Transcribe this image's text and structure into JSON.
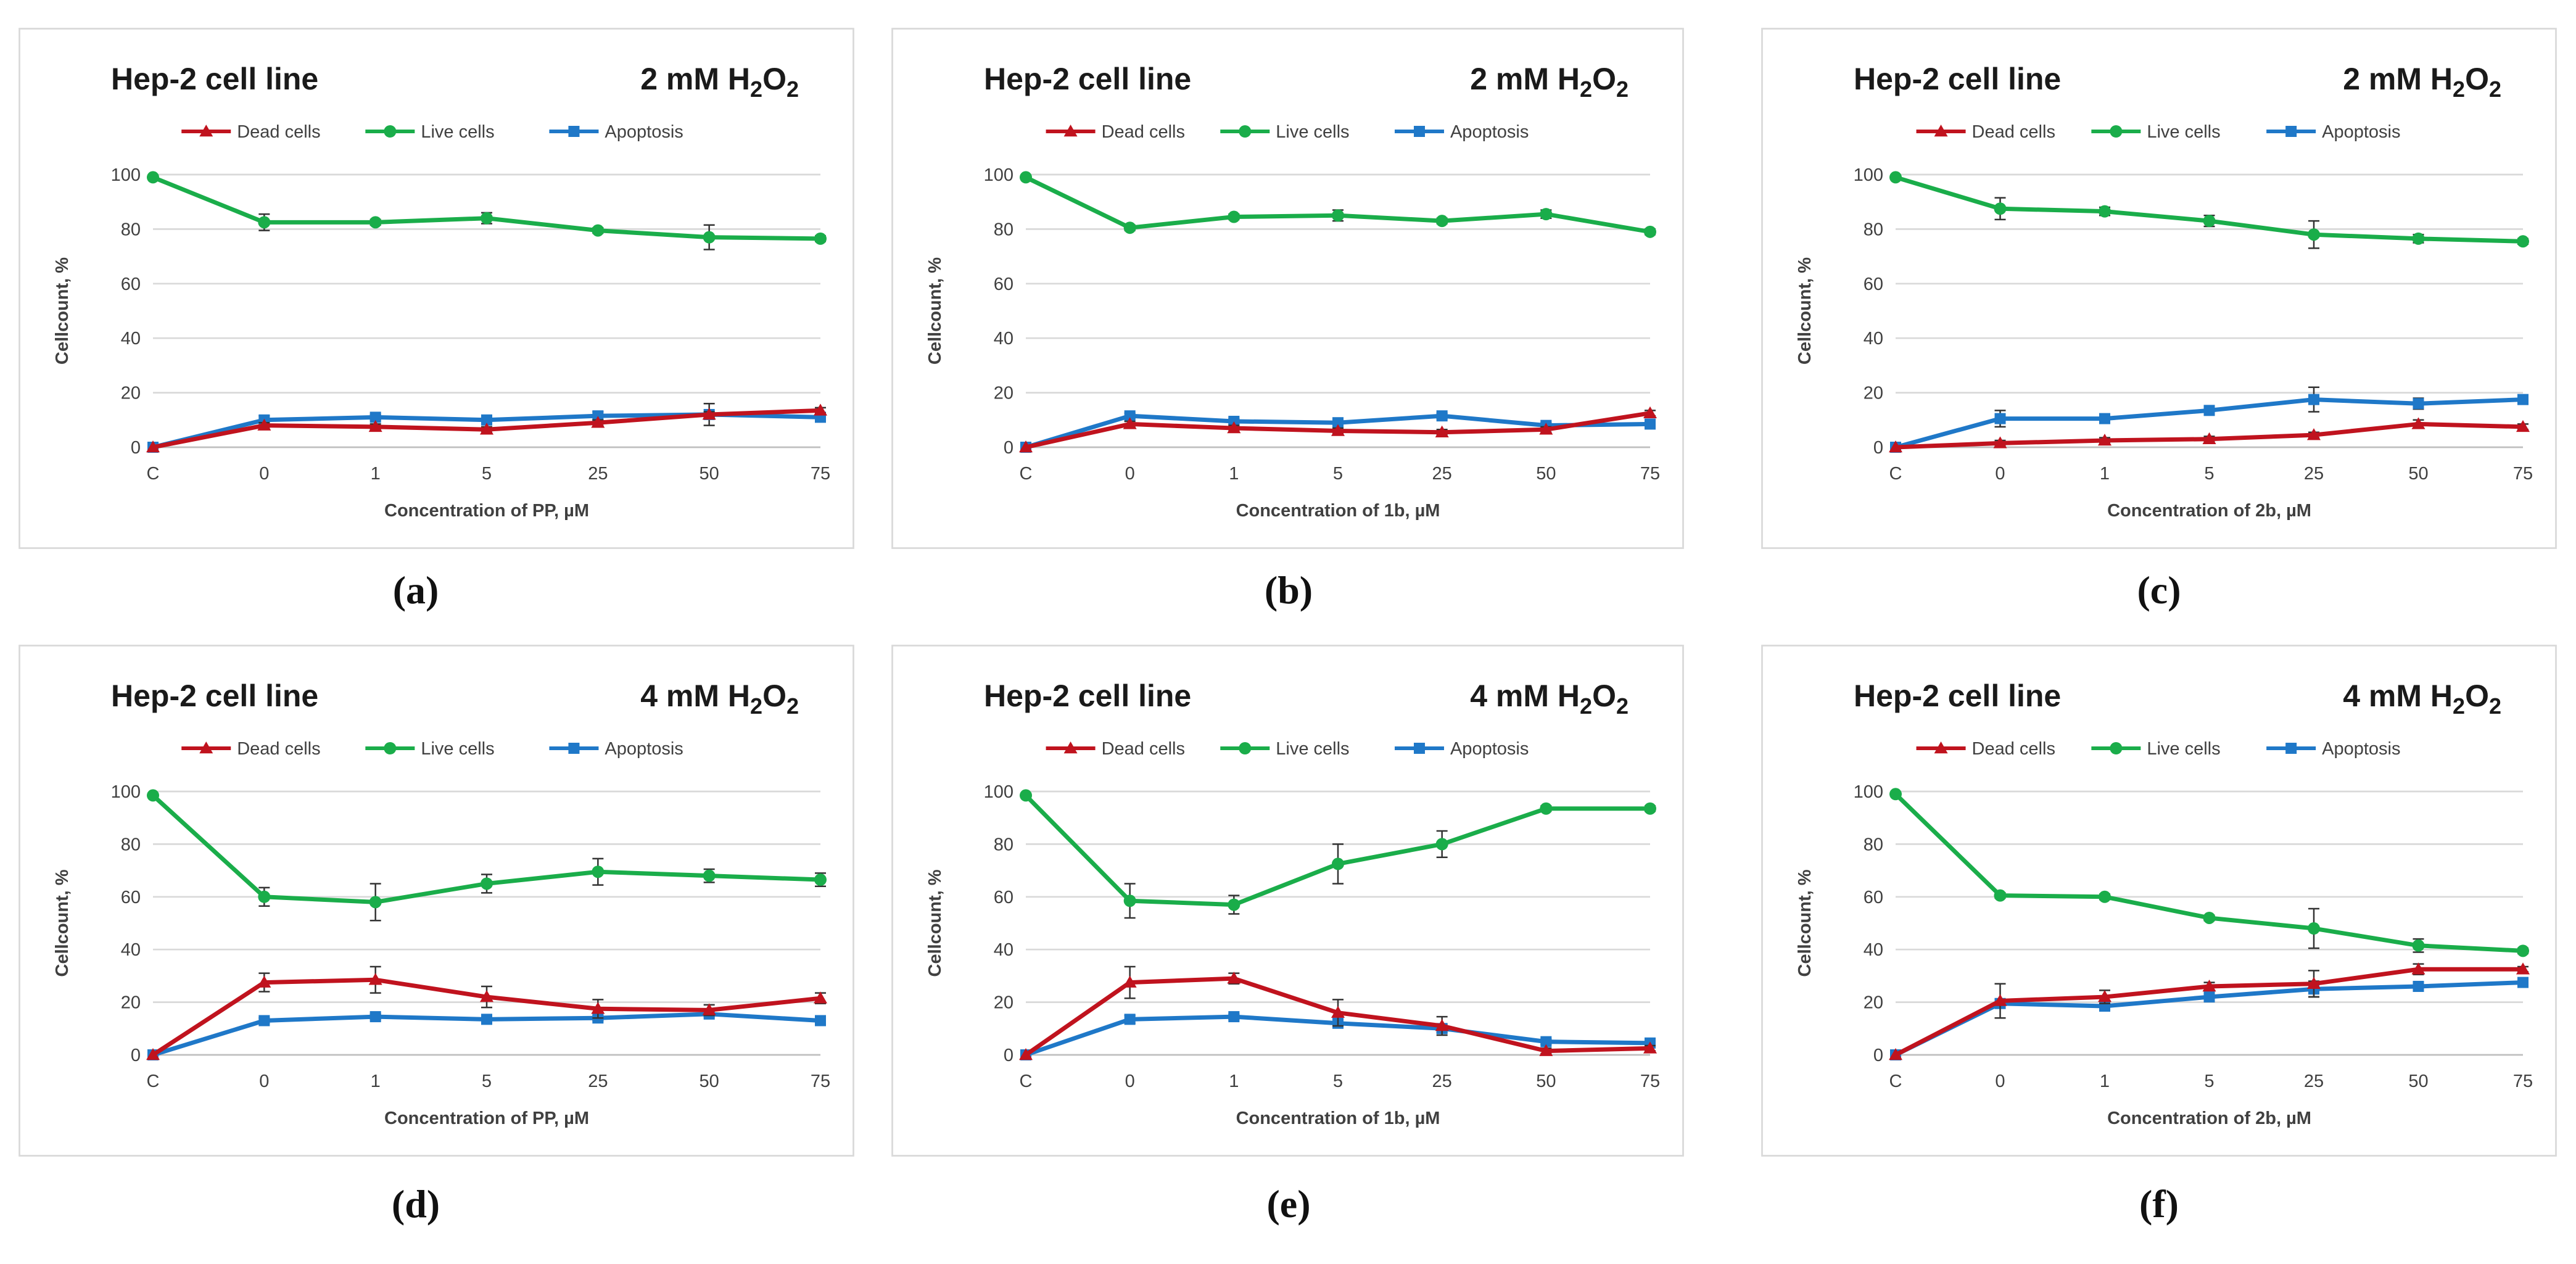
{
  "legend": [
    "Dead cells",
    "Live cells",
    "Apoptosis"
  ],
  "colors": {
    "dead": "#c0131e",
    "live": "#1aad4a",
    "apoptosis": "#1f78c8"
  },
  "chart_data": [
    {
      "panel": "(a)",
      "type": "line",
      "title": "Hep-2 cell line",
      "condition_main": "2 mM H",
      "condition_sub": "2",
      "condition_o": "O",
      "condition_sub2": "2",
      "xlabel": "Concentration of PP, µM",
      "ylabel": "Cellcount, %",
      "categories": [
        "C",
        "0",
        "1",
        "5",
        "25",
        "50",
        "75"
      ],
      "yticks": [
        0,
        20,
        40,
        60,
        80,
        100
      ],
      "ylim": [
        0,
        100
      ],
      "series": [
        {
          "name": "Dead cells",
          "marker": "triangle",
          "values": [
            0,
            8,
            7.5,
            6.5,
            9,
            12,
            13.5
          ],
          "err": [
            0,
            1,
            1,
            1,
            1,
            1,
            1
          ]
        },
        {
          "name": "Live cells",
          "marker": "circle",
          "values": [
            99,
            82.5,
            82.5,
            84,
            79.5,
            77,
            76.5
          ],
          "err": [
            0,
            3,
            1,
            2,
            1,
            4.5,
            1
          ]
        },
        {
          "name": "Apoptosis",
          "marker": "square",
          "values": [
            0,
            10,
            11,
            10,
            11.5,
            12,
            11
          ],
          "err": [
            0,
            1.5,
            1,
            1,
            1.5,
            4,
            1.5
          ]
        }
      ]
    },
    {
      "panel": "(b)",
      "type": "line",
      "title": "Hep-2 cell line",
      "condition_main": "2 mM H",
      "condition_sub": "2",
      "condition_o": "O",
      "condition_sub2": "2",
      "xlabel": "Concentration of 1b, µM",
      "ylabel": "Cellcount, %",
      "categories": [
        "C",
        "0",
        "1",
        "5",
        "25",
        "50",
        "75"
      ],
      "yticks": [
        0,
        20,
        40,
        60,
        80,
        100
      ],
      "ylim": [
        0,
        100
      ],
      "series": [
        {
          "name": "Dead cells",
          "marker": "triangle",
          "values": [
            0,
            8.5,
            7,
            6,
            5.5,
            6.5,
            12.5
          ],
          "err": [
            0,
            1,
            1,
            1,
            1,
            1,
            1
          ]
        },
        {
          "name": "Live cells",
          "marker": "circle",
          "values": [
            99,
            80.5,
            84.5,
            85,
            83,
            85.5,
            79
          ],
          "err": [
            0,
            1,
            1,
            2,
            1,
            1.5,
            1
          ]
        },
        {
          "name": "Apoptosis",
          "marker": "square",
          "values": [
            0,
            11.5,
            9.5,
            9,
            11.5,
            8,
            8.5
          ],
          "err": [
            0,
            1,
            1,
            1,
            1,
            1,
            1
          ]
        }
      ]
    },
    {
      "panel": "(c)",
      "type": "line",
      "title": "Hep-2 cell line",
      "condition_main": "2 mM H",
      "condition_sub": "2",
      "condition_o": "O",
      "condition_sub2": "2",
      "xlabel": "Concentration of 2b, µM",
      "ylabel": "Cellcount, %",
      "categories": [
        "C",
        "0",
        "1",
        "5",
        "25",
        "50",
        "75"
      ],
      "yticks": [
        0,
        20,
        40,
        60,
        80,
        100
      ],
      "ylim": [
        0,
        100
      ],
      "series": [
        {
          "name": "Dead cells",
          "marker": "triangle",
          "values": [
            0,
            1.5,
            2.5,
            3,
            4.5,
            8.5,
            7.5
          ],
          "err": [
            0,
            1,
            1,
            1,
            1,
            1.5,
            1
          ]
        },
        {
          "name": "Live cells",
          "marker": "circle",
          "values": [
            99,
            87.5,
            86.5,
            83,
            78,
            76.5,
            75.5
          ],
          "err": [
            0,
            4,
            1.5,
            2,
            5,
            1.5,
            1
          ]
        },
        {
          "name": "Apoptosis",
          "marker": "square",
          "values": [
            0,
            10.5,
            10.5,
            13.5,
            17.5,
            16,
            17.5
          ],
          "err": [
            0,
            3,
            1,
            1,
            4.5,
            2,
            1
          ]
        }
      ]
    },
    {
      "panel": "(d)",
      "type": "line",
      "title": "Hep-2 cell line",
      "condition_main": "4 mM H",
      "condition_sub": "2",
      "condition_o": "O",
      "condition_sub2": "2",
      "xlabel": "Concentration of PP, µM",
      "ylabel": "Cellcount, %",
      "categories": [
        "C",
        "0",
        "1",
        "5",
        "25",
        "50",
        "75"
      ],
      "yticks": [
        0,
        20,
        40,
        60,
        80,
        100
      ],
      "ylim": [
        0,
        100
      ],
      "series": [
        {
          "name": "Dead cells",
          "marker": "triangle",
          "values": [
            0,
            27.5,
            28.5,
            22,
            17.5,
            17,
            21.5
          ],
          "err": [
            0,
            3.5,
            5,
            4,
            3.5,
            2,
            2
          ]
        },
        {
          "name": "Live cells",
          "marker": "circle",
          "values": [
            98.5,
            60,
            58,
            65,
            69.5,
            68,
            66.5
          ],
          "err": [
            0,
            3.5,
            7,
            3.5,
            5,
            2.5,
            2.5
          ]
        },
        {
          "name": "Apoptosis",
          "marker": "square",
          "values": [
            0,
            13,
            14.5,
            13.5,
            14,
            15.5,
            13
          ],
          "err": [
            0,
            1,
            1,
            1,
            1,
            1,
            1
          ]
        }
      ]
    },
    {
      "panel": "(e)",
      "type": "line",
      "title": "Hep-2 cell line",
      "condition_main": "4 mM H",
      "condition_sub": "2",
      "condition_o": "O",
      "condition_sub2": "2",
      "xlabel": "Concentration of 1b, µM",
      "ylabel": "Cellcount, %",
      "categories": [
        "C",
        "0",
        "1",
        "5",
        "25",
        "50",
        "75"
      ],
      "yticks": [
        0,
        20,
        40,
        60,
        80,
        100
      ],
      "ylim": [
        0,
        100
      ],
      "series": [
        {
          "name": "Dead cells",
          "marker": "triangle",
          "values": [
            0,
            27.5,
            29,
            16,
            11,
            1.5,
            2.5
          ],
          "err": [
            0,
            6,
            2,
            5,
            3.5,
            1,
            1
          ]
        },
        {
          "name": "Live cells",
          "marker": "circle",
          "values": [
            98.5,
            58.5,
            57,
            72.5,
            80,
            93.5,
            93.5
          ],
          "err": [
            0,
            6.5,
            3.5,
            7.5,
            5,
            1,
            1
          ]
        },
        {
          "name": "Apoptosis",
          "marker": "square",
          "values": [
            0,
            13.5,
            14.5,
            12,
            10,
            5,
            4.5
          ],
          "err": [
            0,
            1.5,
            1,
            1,
            1.5,
            1,
            1
          ]
        }
      ]
    },
    {
      "panel": "(f)",
      "type": "line",
      "title": "Hep-2 cell line",
      "condition_main": "4 mM H",
      "condition_sub": "2",
      "condition_o": "O",
      "condition_sub2": "2",
      "xlabel": "Concentration of 2b, µM",
      "ylabel": "Cellcount, %",
      "categories": [
        "C",
        "0",
        "1",
        "5",
        "25",
        "50",
        "75"
      ],
      "yticks": [
        0,
        20,
        40,
        60,
        80,
        100
      ],
      "ylim": [
        0,
        100
      ],
      "series": [
        {
          "name": "Dead cells",
          "marker": "triangle",
          "values": [
            0,
            20.5,
            22,
            26,
            27,
            32.5,
            32.5
          ],
          "err": [
            0,
            6.5,
            2.5,
            1.5,
            5,
            2,
            1
          ]
        },
        {
          "name": "Live cells",
          "marker": "circle",
          "values": [
            99,
            60.5,
            60,
            52,
            48,
            41.5,
            39.5
          ],
          "err": [
            0,
            1,
            1,
            1,
            7.5,
            2.5,
            1
          ]
        },
        {
          "name": "Apoptosis",
          "marker": "square",
          "values": [
            0,
            19.5,
            18.5,
            22,
            25,
            26,
            27.5
          ],
          "err": [
            0,
            1,
            1,
            1.5,
            3,
            1,
            1
          ]
        }
      ]
    }
  ]
}
